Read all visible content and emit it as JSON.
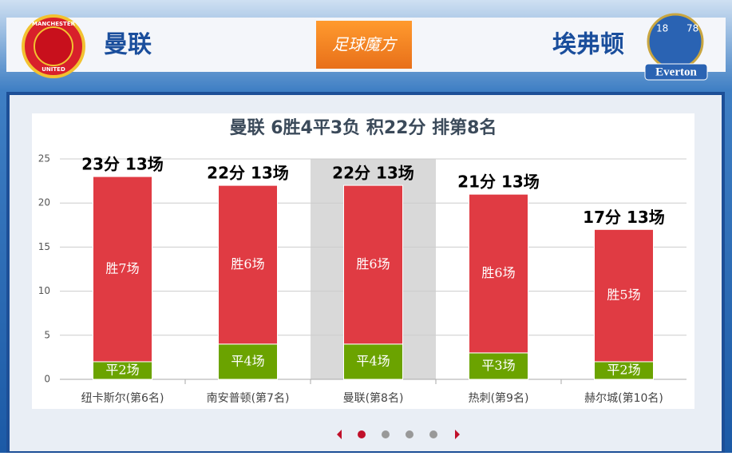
{
  "header": {
    "home": "曼联",
    "away": "埃弗顿",
    "brand": "足球魔方",
    "home_logo": [
      "MANCHESTER",
      "UNITED"
    ],
    "away_logo": [
      "18",
      "78",
      "Everton"
    ]
  },
  "chart_data": {
    "type": "stacked-bar",
    "title": "曼联 6胜4平3负 积22分 排第8名",
    "categories": [
      "纽卡斯尔(第6名)",
      "南安普顿(第7名)",
      "曼联(第8名)",
      "热刺(第9名)",
      "赫尔城(第10名)"
    ],
    "series": [
      {
        "color": "#6ba300",
        "values": [
          2,
          4,
          4,
          3,
          2
        ],
        "labels": [
          "平2场",
          "平4场",
          "平4场",
          "平3场",
          "平2场"
        ]
      },
      {
        "color": "#e03b43",
        "values": [
          21,
          18,
          18,
          18,
          15
        ],
        "labels": [
          "胜7场",
          "胜6场",
          "胜6场",
          "胜6场",
          "胜5场"
        ]
      }
    ],
    "total_labels": [
      "23分 13场",
      "22分 13场",
      "22分 13场",
      "21分 13场",
      "17分 13场"
    ],
    "ylim": [
      0,
      25
    ],
    "yticks": [
      0,
      5,
      10,
      15,
      20,
      25
    ],
    "grid": true,
    "highlight": 2
  }
}
